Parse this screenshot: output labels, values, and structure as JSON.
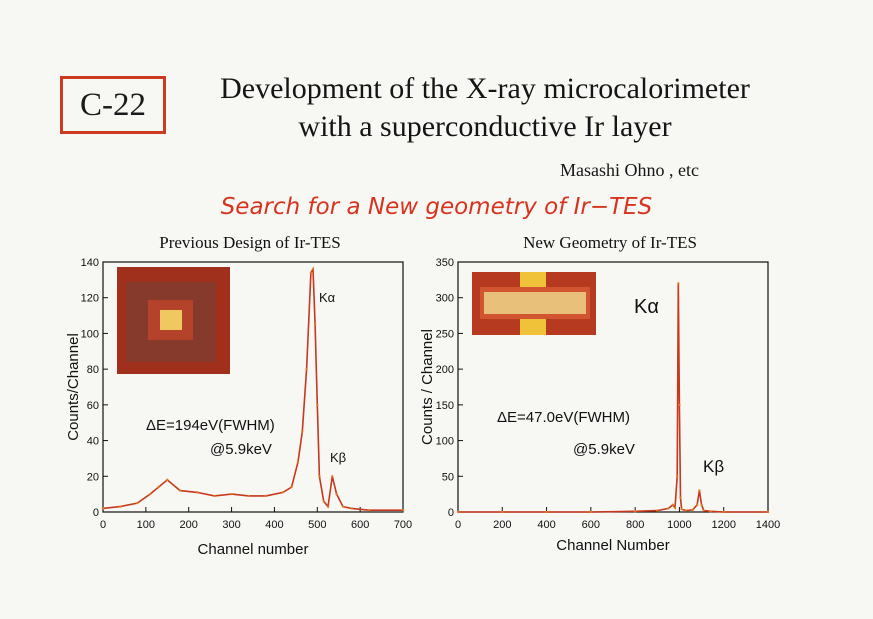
{
  "badge": "C-22",
  "title_line1": "Development of the X-ray microcalorimeter",
  "title_line2": "with a superconductive Ir layer",
  "author": "Masashi Ohno , etc",
  "subtitle": "Search for a New geometry of Ir−TES",
  "colors": {
    "accent": "#d7331e",
    "trace_red": "#c8381d",
    "trace_orange": "#e07a1e",
    "trace_blue": "#2436a8",
    "photo_bg": "#a0301c"
  },
  "chart_data": [
    {
      "type": "line",
      "title": "Previous Design of Ir-TES",
      "xlabel": "Channel number",
      "ylabel": "Counts/Channel",
      "xlim": [
        0,
        700
      ],
      "ylim": [
        0,
        140
      ],
      "xticks": [
        0,
        100,
        200,
        300,
        400,
        500,
        600,
        700
      ],
      "yticks": [
        0,
        20,
        40,
        60,
        80,
        100,
        120,
        140
      ],
      "annotations": {
        "ka": "Kα",
        "kb": "Kβ",
        "res1": "ΔE=194eV(FWHM)",
        "res2": "@5.9keV"
      },
      "series": [
        {
          "x": [
            0,
            40,
            80,
            110,
            130,
            150,
            180,
            220,
            260,
            300,
            340,
            380,
            420,
            440,
            455,
            465,
            475,
            485,
            490,
            495,
            500,
            505,
            515,
            525,
            535,
            545,
            560,
            580,
            620,
            700
          ],
          "values": [
            2,
            3,
            5,
            10,
            14,
            18,
            12,
            11,
            9,
            10,
            9,
            9,
            11,
            14,
            28,
            45,
            80,
            134,
            136,
            105,
            60,
            20,
            6,
            3,
            20,
            10,
            3,
            2,
            1,
            1
          ]
        }
      ]
    },
    {
      "type": "line",
      "title": "New Geometry of Ir-TES",
      "xlabel": "Channel Number",
      "ylabel": "Counts / Channel",
      "xlim": [
        0,
        1400
      ],
      "ylim": [
        0,
        350
      ],
      "xticks": [
        0,
        200,
        400,
        600,
        800,
        1000,
        1200,
        1400
      ],
      "yticks": [
        0,
        50,
        100,
        150,
        200,
        250,
        300,
        350
      ],
      "annotations": {
        "ka": "Kα",
        "kb": "Kβ",
        "res1": "ΔE=47.0eV(FWHM)",
        "res2": "@5.9keV"
      },
      "series": [
        {
          "x": [
            0,
            200,
            400,
            600,
            800,
            900,
            950,
            970,
            980,
            990,
            995,
            1000,
            1005,
            1010,
            1030,
            1060,
            1080,
            1090,
            1100,
            1110,
            1140,
            1200,
            1400
          ],
          "values": [
            0,
            0,
            0,
            0,
            1,
            2,
            5,
            10,
            6,
            50,
            320,
            150,
            20,
            4,
            2,
            3,
            10,
            30,
            10,
            2,
            1,
            0,
            0
          ]
        }
      ]
    }
  ]
}
